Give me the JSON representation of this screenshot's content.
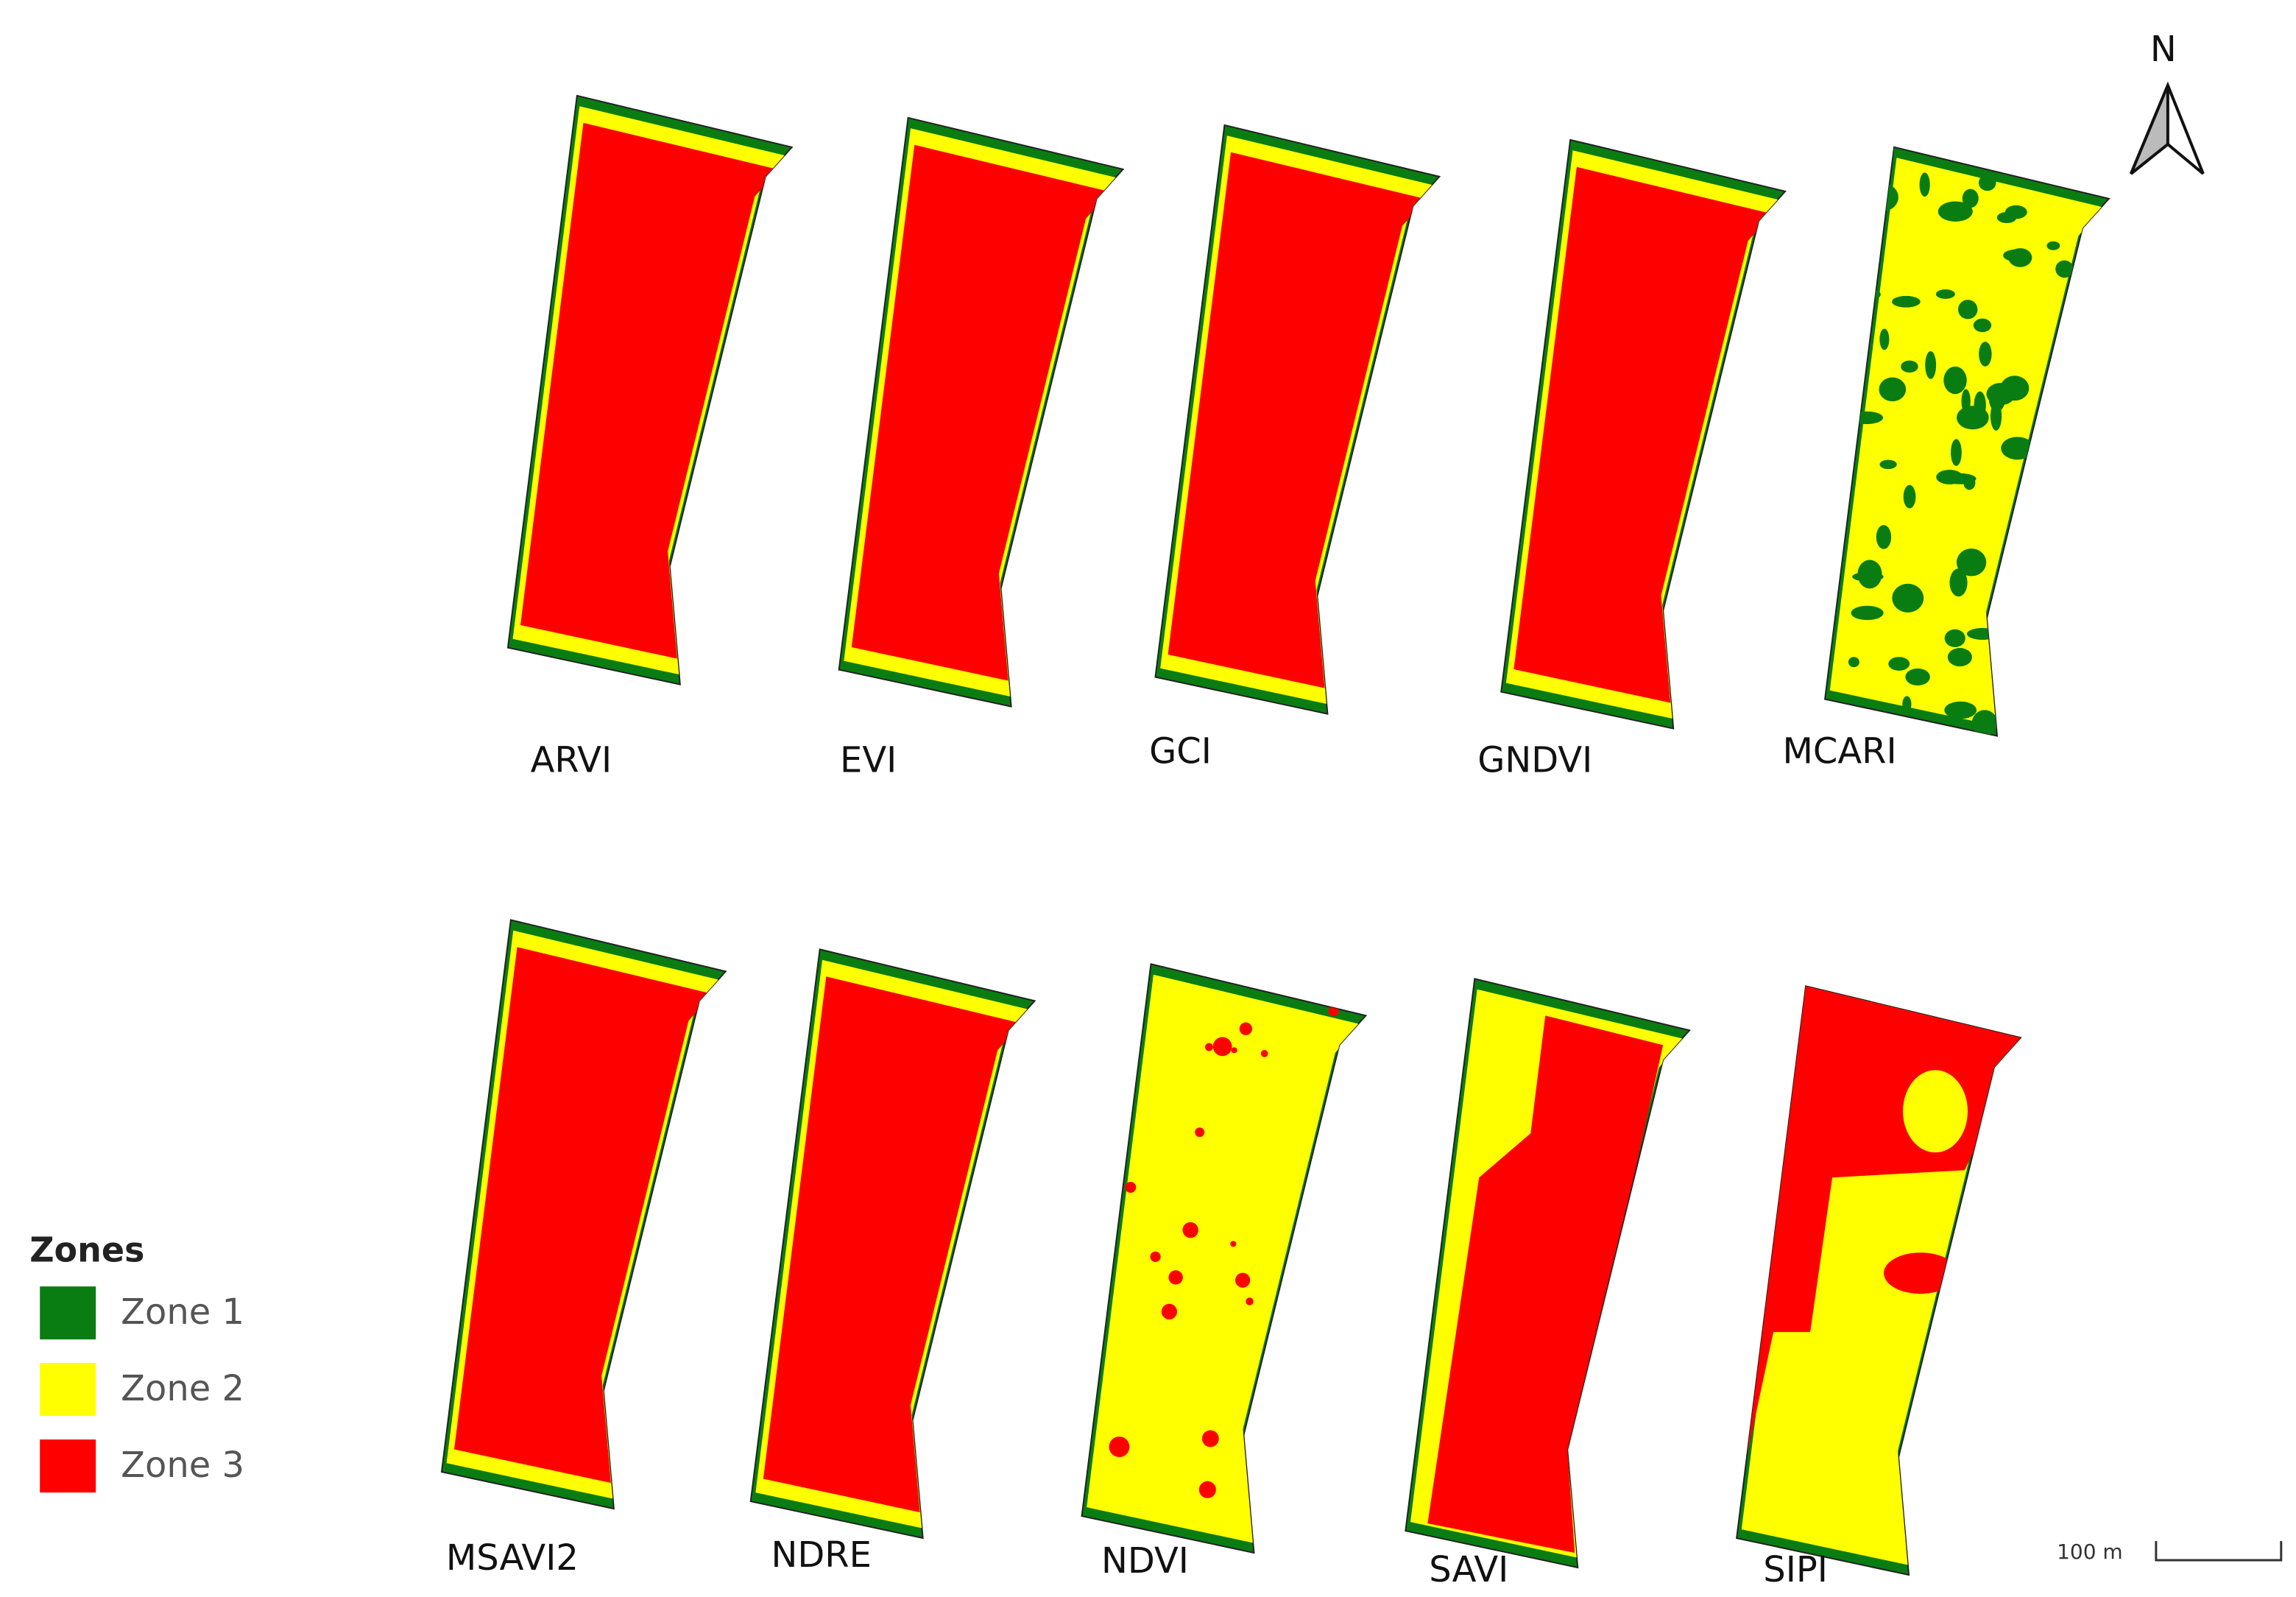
{
  "panels": [
    {
      "label": "ARVI"
    },
    {
      "label": "EVI"
    },
    {
      "label": "GCI"
    },
    {
      "label": "GNDVI"
    },
    {
      "label": "MCARI"
    },
    {
      "label": "MSAVI2"
    },
    {
      "label": "NDRE"
    },
    {
      "label": "NDVI"
    },
    {
      "label": "SAVI"
    },
    {
      "label": "SIPI"
    }
  ],
  "legend": {
    "title": "Zones",
    "items": [
      "Zone 1",
      "Zone 2",
      "Zone 3"
    ]
  },
  "north": "N",
  "scale_bar": "100 m"
}
